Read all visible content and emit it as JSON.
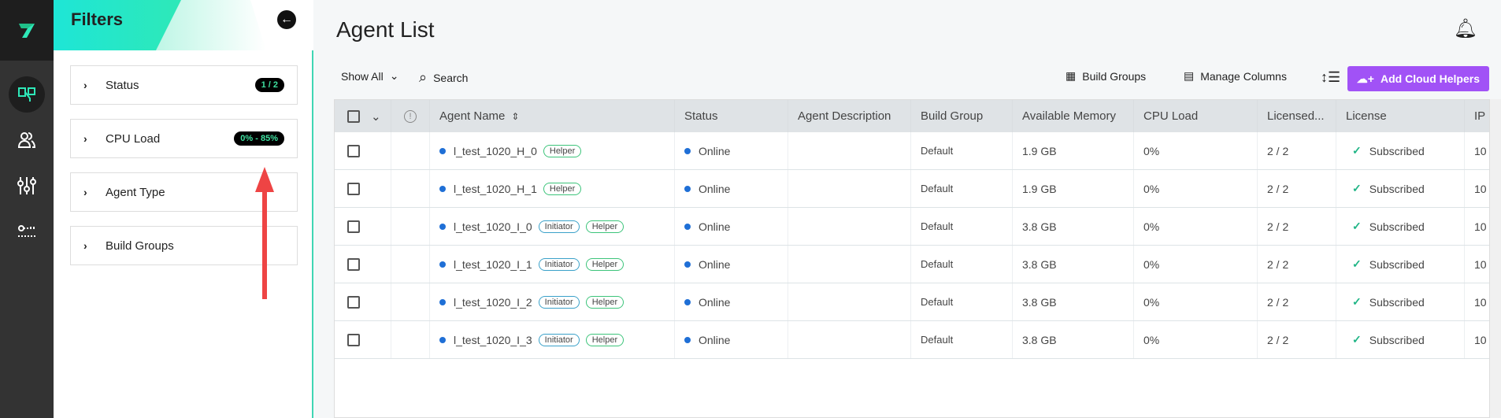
{
  "filters": {
    "title": "Filters",
    "items": [
      {
        "label": "Status",
        "badge": "1 / 2"
      },
      {
        "label": "CPU Load",
        "badge": "0% - 85%"
      },
      {
        "label": "Agent Type",
        "badge": null
      },
      {
        "label": "Build Groups",
        "badge": null
      }
    ]
  },
  "main": {
    "title": "Agent List",
    "show_all": "Show All",
    "search": "Search",
    "build_groups": "Build Groups",
    "manage_columns": "Manage Columns",
    "add_cloud_helpers": "Add Cloud Helpers"
  },
  "colors": {
    "accent": "#a152f6",
    "online": "#1f6fd6",
    "teal": "#2ee8b8"
  },
  "table": {
    "headers": [
      "Agent Name",
      "Status",
      "Agent Description",
      "Build Group",
      "Available Memory",
      "CPU Load",
      "Licensed...",
      "License",
      "IP"
    ],
    "rows": [
      {
        "name": "l_test_1020_H_0",
        "tags": [
          "Helper"
        ],
        "status": "Online",
        "desc": "",
        "group": "Default",
        "memory": "1.9 GB",
        "cpu": "0%",
        "licensed": "2 / 2",
        "license": "Subscribed",
        "ip": "10"
      },
      {
        "name": "l_test_1020_H_1",
        "tags": [
          "Helper"
        ],
        "status": "Online",
        "desc": "",
        "group": "Default",
        "memory": "1.9 GB",
        "cpu": "0%",
        "licensed": "2 / 2",
        "license": "Subscribed",
        "ip": "10"
      },
      {
        "name": "l_test_1020_I_0",
        "tags": [
          "Initiator",
          "Helper"
        ],
        "status": "Online",
        "desc": "",
        "group": "Default",
        "memory": "3.8 GB",
        "cpu": "0%",
        "licensed": "2 / 2",
        "license": "Subscribed",
        "ip": "10"
      },
      {
        "name": "l_test_1020_I_1",
        "tags": [
          "Initiator",
          "Helper"
        ],
        "status": "Online",
        "desc": "",
        "group": "Default",
        "memory": "3.8 GB",
        "cpu": "0%",
        "licensed": "2 / 2",
        "license": "Subscribed",
        "ip": "10"
      },
      {
        "name": "l_test_1020_I_2",
        "tags": [
          "Initiator",
          "Helper"
        ],
        "status": "Online",
        "desc": "",
        "group": "Default",
        "memory": "3.8 GB",
        "cpu": "0%",
        "licensed": "2 / 2",
        "license": "Subscribed",
        "ip": "10"
      },
      {
        "name": "l_test_1020_I_3",
        "tags": [
          "Initiator",
          "Helper"
        ],
        "status": "Online",
        "desc": "",
        "group": "Default",
        "memory": "3.8 GB",
        "cpu": "0%",
        "licensed": "2 / 2",
        "license": "Subscribed",
        "ip": "10"
      }
    ]
  }
}
